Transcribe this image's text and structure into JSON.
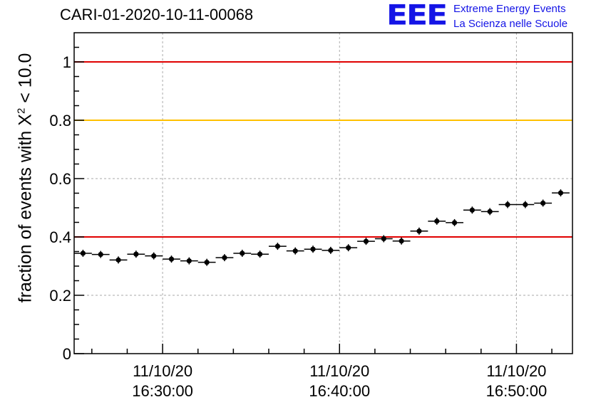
{
  "header": {
    "run_id": "CARI-01-2020-10-11-00068",
    "logo_mark": "EEE",
    "logo_line1": "Extreme Energy Events",
    "logo_line2": "La Scienza nelle Scuole"
  },
  "colors": {
    "reference_red": "#e00000",
    "reference_gold": "#ffc000",
    "markers": "#000000",
    "grid": "#aaaaaa",
    "logo_blue": "#1414e6"
  },
  "chart_data": {
    "type": "scatter",
    "title": "CARI-01-2020-10-11-00068",
    "xlabel": "",
    "ylabel_prefix": "fraction of events with X",
    "ylabel_superscript": "2",
    "ylabel_suffix": " < 10.0",
    "ylim": [
      0,
      1.1
    ],
    "xlim": [
      "11/10/20 16:25:00",
      "11/10/20 16:53:10"
    ],
    "x_tick_labels": [
      {
        "date": "11/10/20",
        "time": "16:30:00"
      },
      {
        "date": "11/10/20",
        "time": "16:40:00"
      },
      {
        "date": "11/10/20",
        "time": "16:50:00"
      }
    ],
    "y_tick_labels": [
      "0",
      "0.2",
      "0.4",
      "0.6",
      "0.8",
      "1"
    ],
    "y_ticks": [
      0,
      0.2,
      0.4,
      0.6,
      0.8,
      1.0
    ],
    "grid": true,
    "bin_width_seconds": 60,
    "reference_lines": [
      {
        "y": 1.0,
        "color": "#e00000"
      },
      {
        "y": 0.8,
        "color": "#ffc000"
      },
      {
        "y": 0.4,
        "color": "#e00000"
      }
    ],
    "series": [
      {
        "x": [
          "16:25:00",
          "16:26:00",
          "16:27:00",
          "16:28:00",
          "16:29:00",
          "16:30:00",
          "16:31:00",
          "16:32:00",
          "16:33:00",
          "16:34:00",
          "16:35:00",
          "16:36:00",
          "16:37:00",
          "16:38:00",
          "16:39:00",
          "16:40:00",
          "16:41:00",
          "16:42:00",
          "16:43:00",
          "16:44:00",
          "16:45:00",
          "16:46:00",
          "16:47:00",
          "16:48:00",
          "16:49:00",
          "16:50:00",
          "16:51:00",
          "16:52:00"
        ],
        "values": [
          0.344,
          0.34,
          0.321,
          0.341,
          0.335,
          0.324,
          0.318,
          0.313,
          0.329,
          0.344,
          0.341,
          0.368,
          0.352,
          0.358,
          0.354,
          0.363,
          0.385,
          0.394,
          0.386,
          0.42,
          0.454,
          0.449,
          0.492,
          0.487,
          0.511,
          0.511,
          0.516,
          0.551
        ]
      }
    ]
  }
}
